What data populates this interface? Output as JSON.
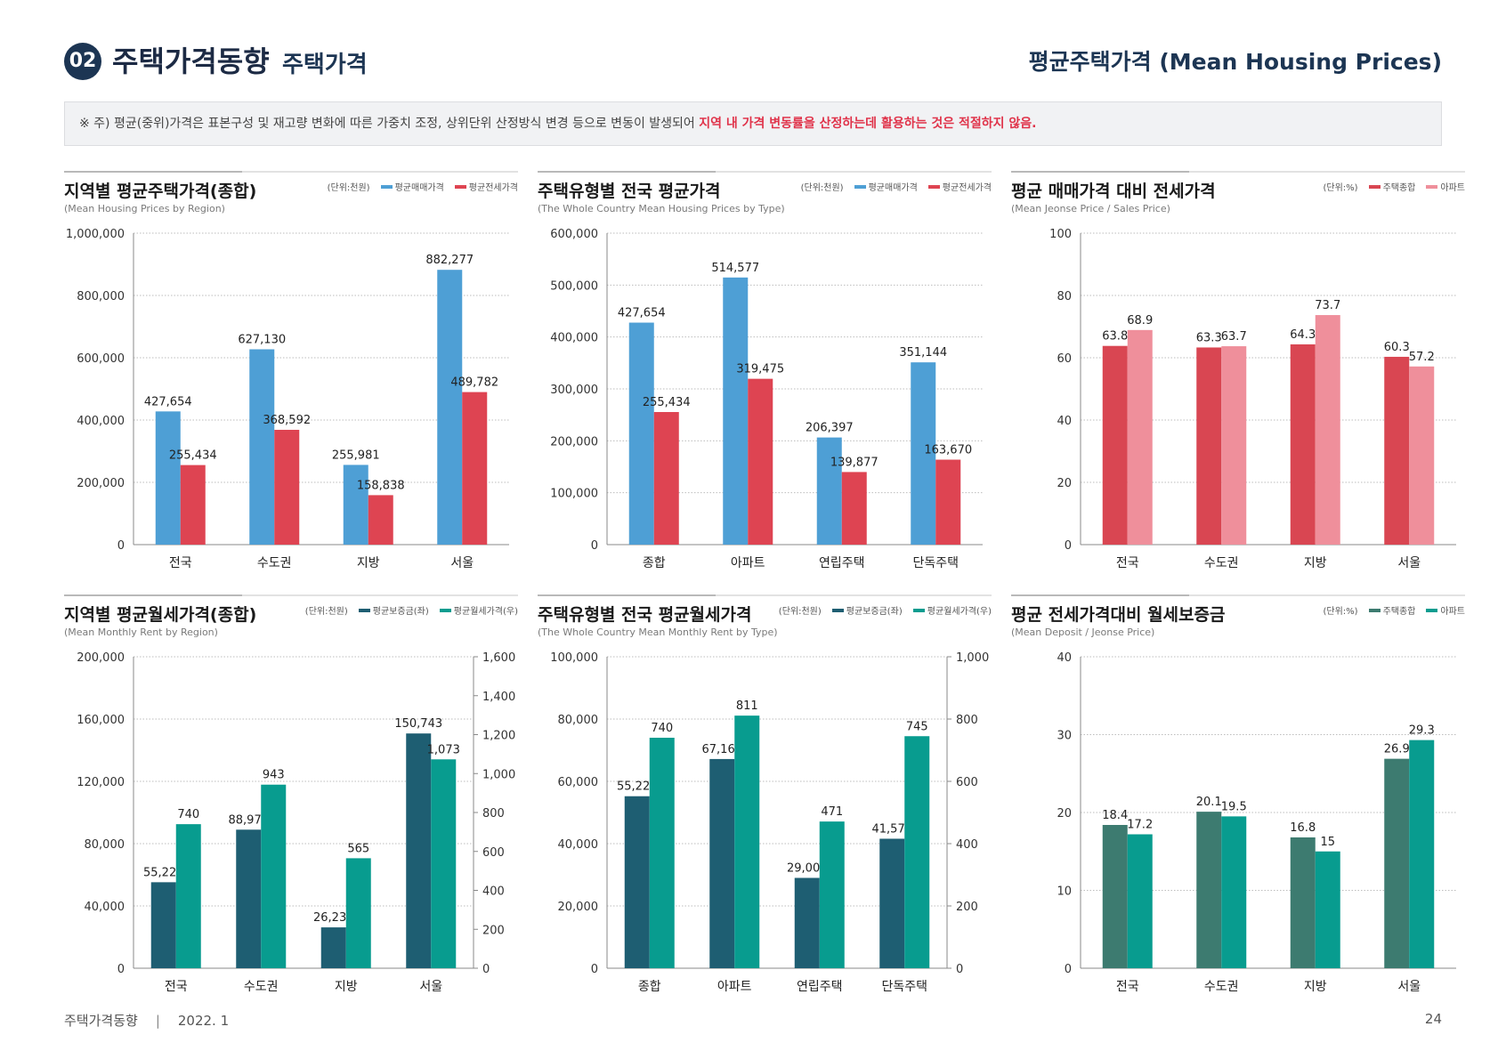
{
  "header": {
    "badge": "02",
    "section_title": "주택가격동향",
    "section_sub": "주택가격",
    "page_title": "평균주택가격 (Mean Housing Prices)"
  },
  "note": {
    "text": "※ 주) 평균(중위)가격은 표본구성 및 재고량 변화에 따른 가중치 조정, 상위단위 산정방식 변경 등으로 변동이 발생되어 ",
    "highlight": "지역 내 가격 변동률을 산정하는데 활용하는 것은 적절하지 않음."
  },
  "footer": {
    "left": "주택가격동향",
    "sep": "|",
    "date": "2022. 1",
    "page": "24"
  },
  "chart_data": [
    {
      "id": "c1",
      "type": "bar",
      "title": "지역별 평균주택가격(종합)",
      "subtitle": "(Mean Housing Prices by Region)",
      "unit": "(단위:천원)",
      "categories": [
        "전국",
        "수도권",
        "지방",
        "서울"
      ],
      "ylim": [
        0,
        1000000
      ],
      "yticks": [
        0,
        200000,
        400000,
        600000,
        800000,
        1000000
      ],
      "series": [
        {
          "name": "평균매매가격",
          "color": "#4e9fd5",
          "axis": "left",
          "values": [
            427654,
            627130,
            255981,
            882277
          ]
        },
        {
          "name": "평균전세가격",
          "color": "#de4452",
          "axis": "left",
          "values": [
            255434,
            368592,
            158838,
            489782
          ]
        }
      ]
    },
    {
      "id": "c2",
      "type": "bar",
      "title": "주택유형별 전국 평균가격",
      "subtitle": "(The Whole Country Mean Housing Prices by Type)",
      "unit": "(단위:천원)",
      "categories": [
        "종합",
        "아파트",
        "연립주택",
        "단독주택"
      ],
      "ylim": [
        0,
        600000
      ],
      "yticks": [
        0,
        100000,
        200000,
        300000,
        400000,
        500000,
        600000
      ],
      "series": [
        {
          "name": "평균매매가격",
          "color": "#4e9fd5",
          "axis": "left",
          "values": [
            427654,
            514577,
            206397,
            351144
          ]
        },
        {
          "name": "평균전세가격",
          "color": "#de4452",
          "axis": "left",
          "values": [
            255434,
            319475,
            139877,
            163670
          ]
        }
      ]
    },
    {
      "id": "c3",
      "type": "bar",
      "title": "평균 매매가격 대비 전세가격",
      "subtitle": "(Mean Jeonse Price / Sales Price)",
      "unit": "(단위:%)",
      "categories": [
        "전국",
        "수도권",
        "지방",
        "서울"
      ],
      "ylim": [
        0,
        100
      ],
      "yticks": [
        0,
        20,
        40,
        60,
        80,
        100
      ],
      "series": [
        {
          "name": "주택종합",
          "color": "#d94652",
          "axis": "left",
          "values": [
            63.8,
            63.3,
            64.3,
            60.3
          ]
        },
        {
          "name": "아파트",
          "color": "#ef8f9b",
          "axis": "left",
          "values": [
            68.9,
            63.7,
            73.7,
            57.2
          ]
        }
      ]
    },
    {
      "id": "c4",
      "type": "bar",
      "title": "지역별 평균월세가격(종합)",
      "subtitle": "(Mean Monthly Rent by Region)",
      "unit": "(단위:천원)",
      "categories": [
        "전국",
        "수도권",
        "지방",
        "서울"
      ],
      "ylim": [
        0,
        200000
      ],
      "yticks": [
        0,
        40000,
        80000,
        120000,
        160000,
        200000
      ],
      "y2lim": [
        0,
        1600
      ],
      "y2ticks": [
        0,
        200,
        400,
        600,
        800,
        1000,
        1200,
        1400,
        1600
      ],
      "series": [
        {
          "name": "평균보증금(좌)",
          "color": "#1e5e72",
          "axis": "left",
          "values": [
            55221,
            88976,
            26236,
            150743
          ]
        },
        {
          "name": "평균월세가격(우)",
          "color": "#089c8f",
          "axis": "right",
          "values": [
            740,
            943,
            565,
            1073
          ]
        }
      ]
    },
    {
      "id": "c5",
      "type": "bar",
      "title": "주택유형별 전국 평균월세가격",
      "subtitle": "(The Whole Country Mean Monthly Rent by Type)",
      "unit": "(단위:천원)",
      "categories": [
        "종합",
        "아파트",
        "연립주택",
        "단독주택"
      ],
      "ylim": [
        0,
        100000
      ],
      "yticks": [
        0,
        20000,
        40000,
        60000,
        80000,
        100000
      ],
      "y2lim": [
        0,
        1000
      ],
      "y2ticks": [
        0,
        200,
        400,
        600,
        800,
        1000
      ],
      "series": [
        {
          "name": "평균보증금(좌)",
          "color": "#1e5e72",
          "axis": "left",
          "values": [
            55221,
            67169,
            29003,
            41577
          ]
        },
        {
          "name": "평균월세가격(우)",
          "color": "#089c8f",
          "axis": "right",
          "values": [
            740,
            811,
            471,
            745
          ]
        }
      ]
    },
    {
      "id": "c6",
      "type": "bar",
      "title": "평균 전세가격대비 월세보증금",
      "subtitle": "(Mean Deposit / Jeonse Price)",
      "unit": "(단위:%)",
      "categories": [
        "전국",
        "수도권",
        "지방",
        "서울"
      ],
      "ylim": [
        0,
        40
      ],
      "yticks": [
        0,
        10,
        20,
        30,
        40
      ],
      "series": [
        {
          "name": "주택종합",
          "color": "#3d7b70",
          "axis": "left",
          "values": [
            18.4,
            20.1,
            16.8,
            26.9
          ]
        },
        {
          "name": "아파트",
          "color": "#089c8f",
          "axis": "left",
          "values": [
            17.2,
            19.5,
            15.0,
            29.3
          ]
        }
      ]
    }
  ]
}
